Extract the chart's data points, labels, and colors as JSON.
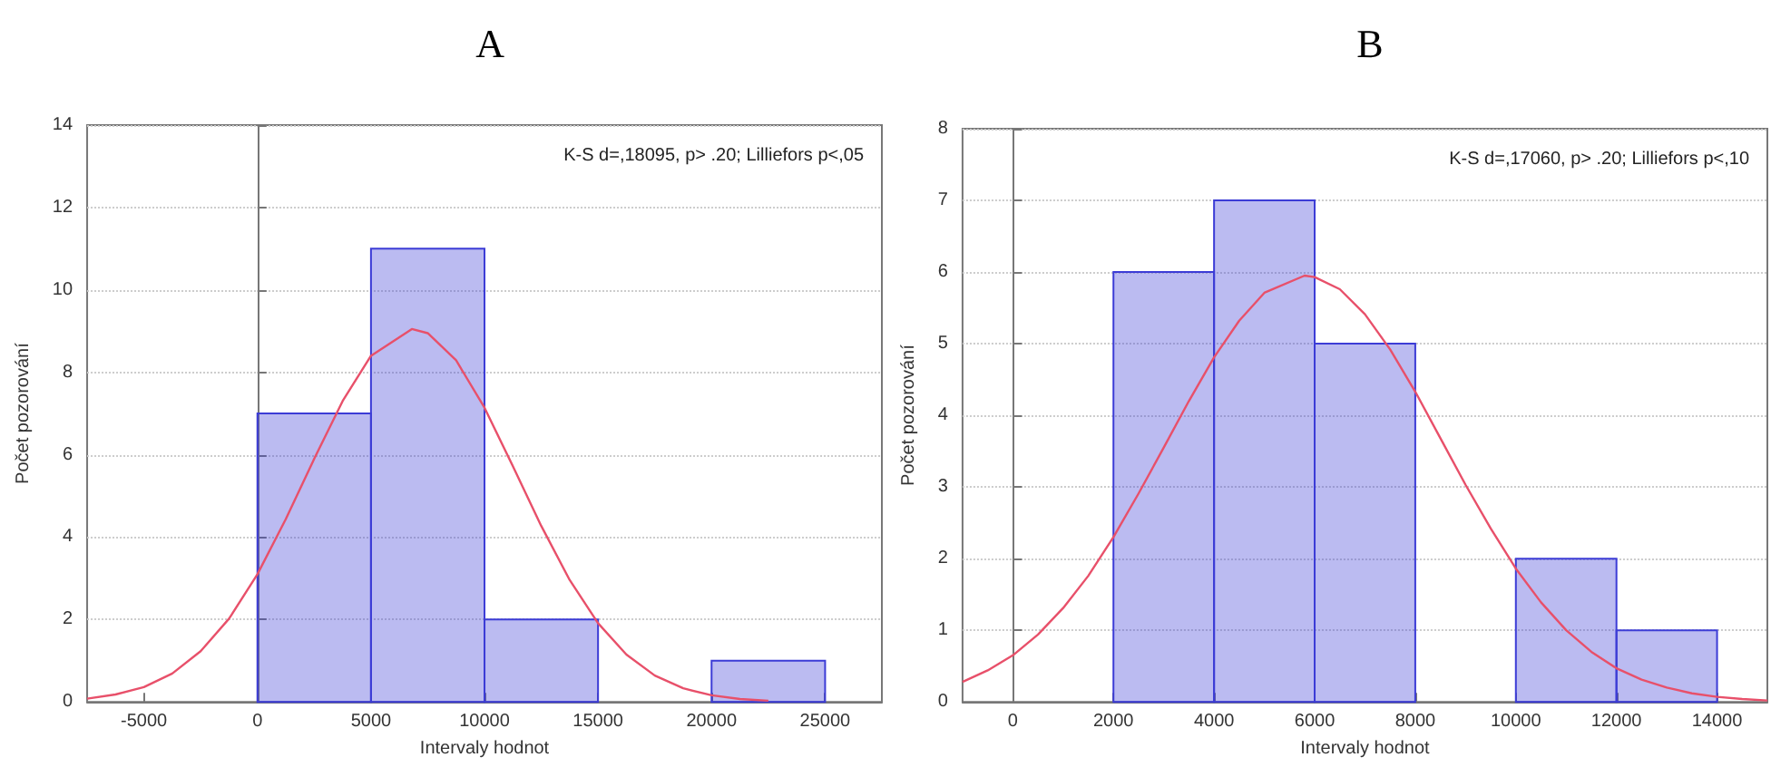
{
  "chart_data": [
    {
      "type": "histogram",
      "title": "A",
      "xlabel": "Intervaly hodnot",
      "ylabel": "Počet pozorování",
      "annotations": [
        "K-S d=,18095, p> .20; Lilliefors p<,05"
      ],
      "xlim": [
        -7500,
        27500
      ],
      "xticks": [
        -5000,
        0,
        5000,
        10000,
        15000,
        20000,
        25000
      ],
      "ylim": [
        0,
        14
      ],
      "yticks": [
        0,
        2,
        4,
        6,
        8,
        10,
        12,
        14
      ],
      "grid": "y",
      "marker": "none",
      "series": [
        {
          "color": "#3c3cd6",
          "bins": [
            0,
            5000,
            10000,
            15000,
            20000,
            25000
          ],
          "values": [
            7,
            11,
            2,
            0,
            1
          ]
        },
        {
          "type": "line",
          "color": "#e8506a",
          "x": [
            -7500,
            -6250,
            -5000,
            -3750,
            -2500,
            -1250,
            0,
            1250,
            2500,
            3750,
            5000,
            6800,
            7500,
            8750,
            10000,
            11250,
            12500,
            13750,
            15000,
            16250,
            17500,
            18750,
            20000,
            21250,
            22500
          ],
          "values": [
            0.08,
            0.18,
            0.36,
            0.69,
            1.23,
            2.02,
            3.1,
            4.44,
            5.9,
            7.3,
            8.4,
            9.05,
            8.95,
            8.29,
            7.14,
            5.72,
            4.27,
            2.96,
            1.91,
            1.15,
            0.64,
            0.33,
            0.16,
            0.07,
            0.03
          ]
        }
      ]
    },
    {
      "type": "histogram",
      "title": "B",
      "xlabel": "Intervaly hodnot",
      "ylabel": "Počet pozorování",
      "annotations": [
        "K-S d=,17060, p> .20; Lilliefors p<,10"
      ],
      "xlim": [
        -1000,
        15000
      ],
      "xticks": [
        0,
        2000,
        4000,
        6000,
        8000,
        10000,
        12000,
        14000
      ],
      "ylim": [
        0,
        8
      ],
      "yticks": [
        0,
        1,
        2,
        3,
        4,
        5,
        6,
        7,
        8
      ],
      "grid": "y",
      "marker": "none",
      "series": [
        {
          "color": "#3c3cd6",
          "bins": [
            2000,
            4000,
            6000,
            8000,
            10000,
            12000,
            14000
          ],
          "values": [
            6,
            7,
            5,
            0,
            2,
            1
          ]
        },
        {
          "type": "line",
          "color": "#e8506a",
          "x": [
            -1000,
            -500,
            0,
            500,
            1000,
            1500,
            2000,
            2500,
            3000,
            3500,
            4000,
            4500,
            5000,
            5800,
            6000,
            6500,
            7000,
            7500,
            8000,
            8500,
            9000,
            9500,
            10000,
            10500,
            11000,
            11500,
            12000,
            12500,
            13000,
            13500,
            14000,
            14500,
            15000
          ],
          "values": [
            0.28,
            0.44,
            0.65,
            0.94,
            1.31,
            1.76,
            2.3,
            2.91,
            3.55,
            4.2,
            4.81,
            5.32,
            5.71,
            5.95,
            5.93,
            5.76,
            5.41,
            4.92,
            4.33,
            3.68,
            3.03,
            2.42,
            1.86,
            1.39,
            1.0,
            0.7,
            0.47,
            0.31,
            0.2,
            0.12,
            0.07,
            0.04,
            0.02
          ]
        }
      ]
    }
  ]
}
